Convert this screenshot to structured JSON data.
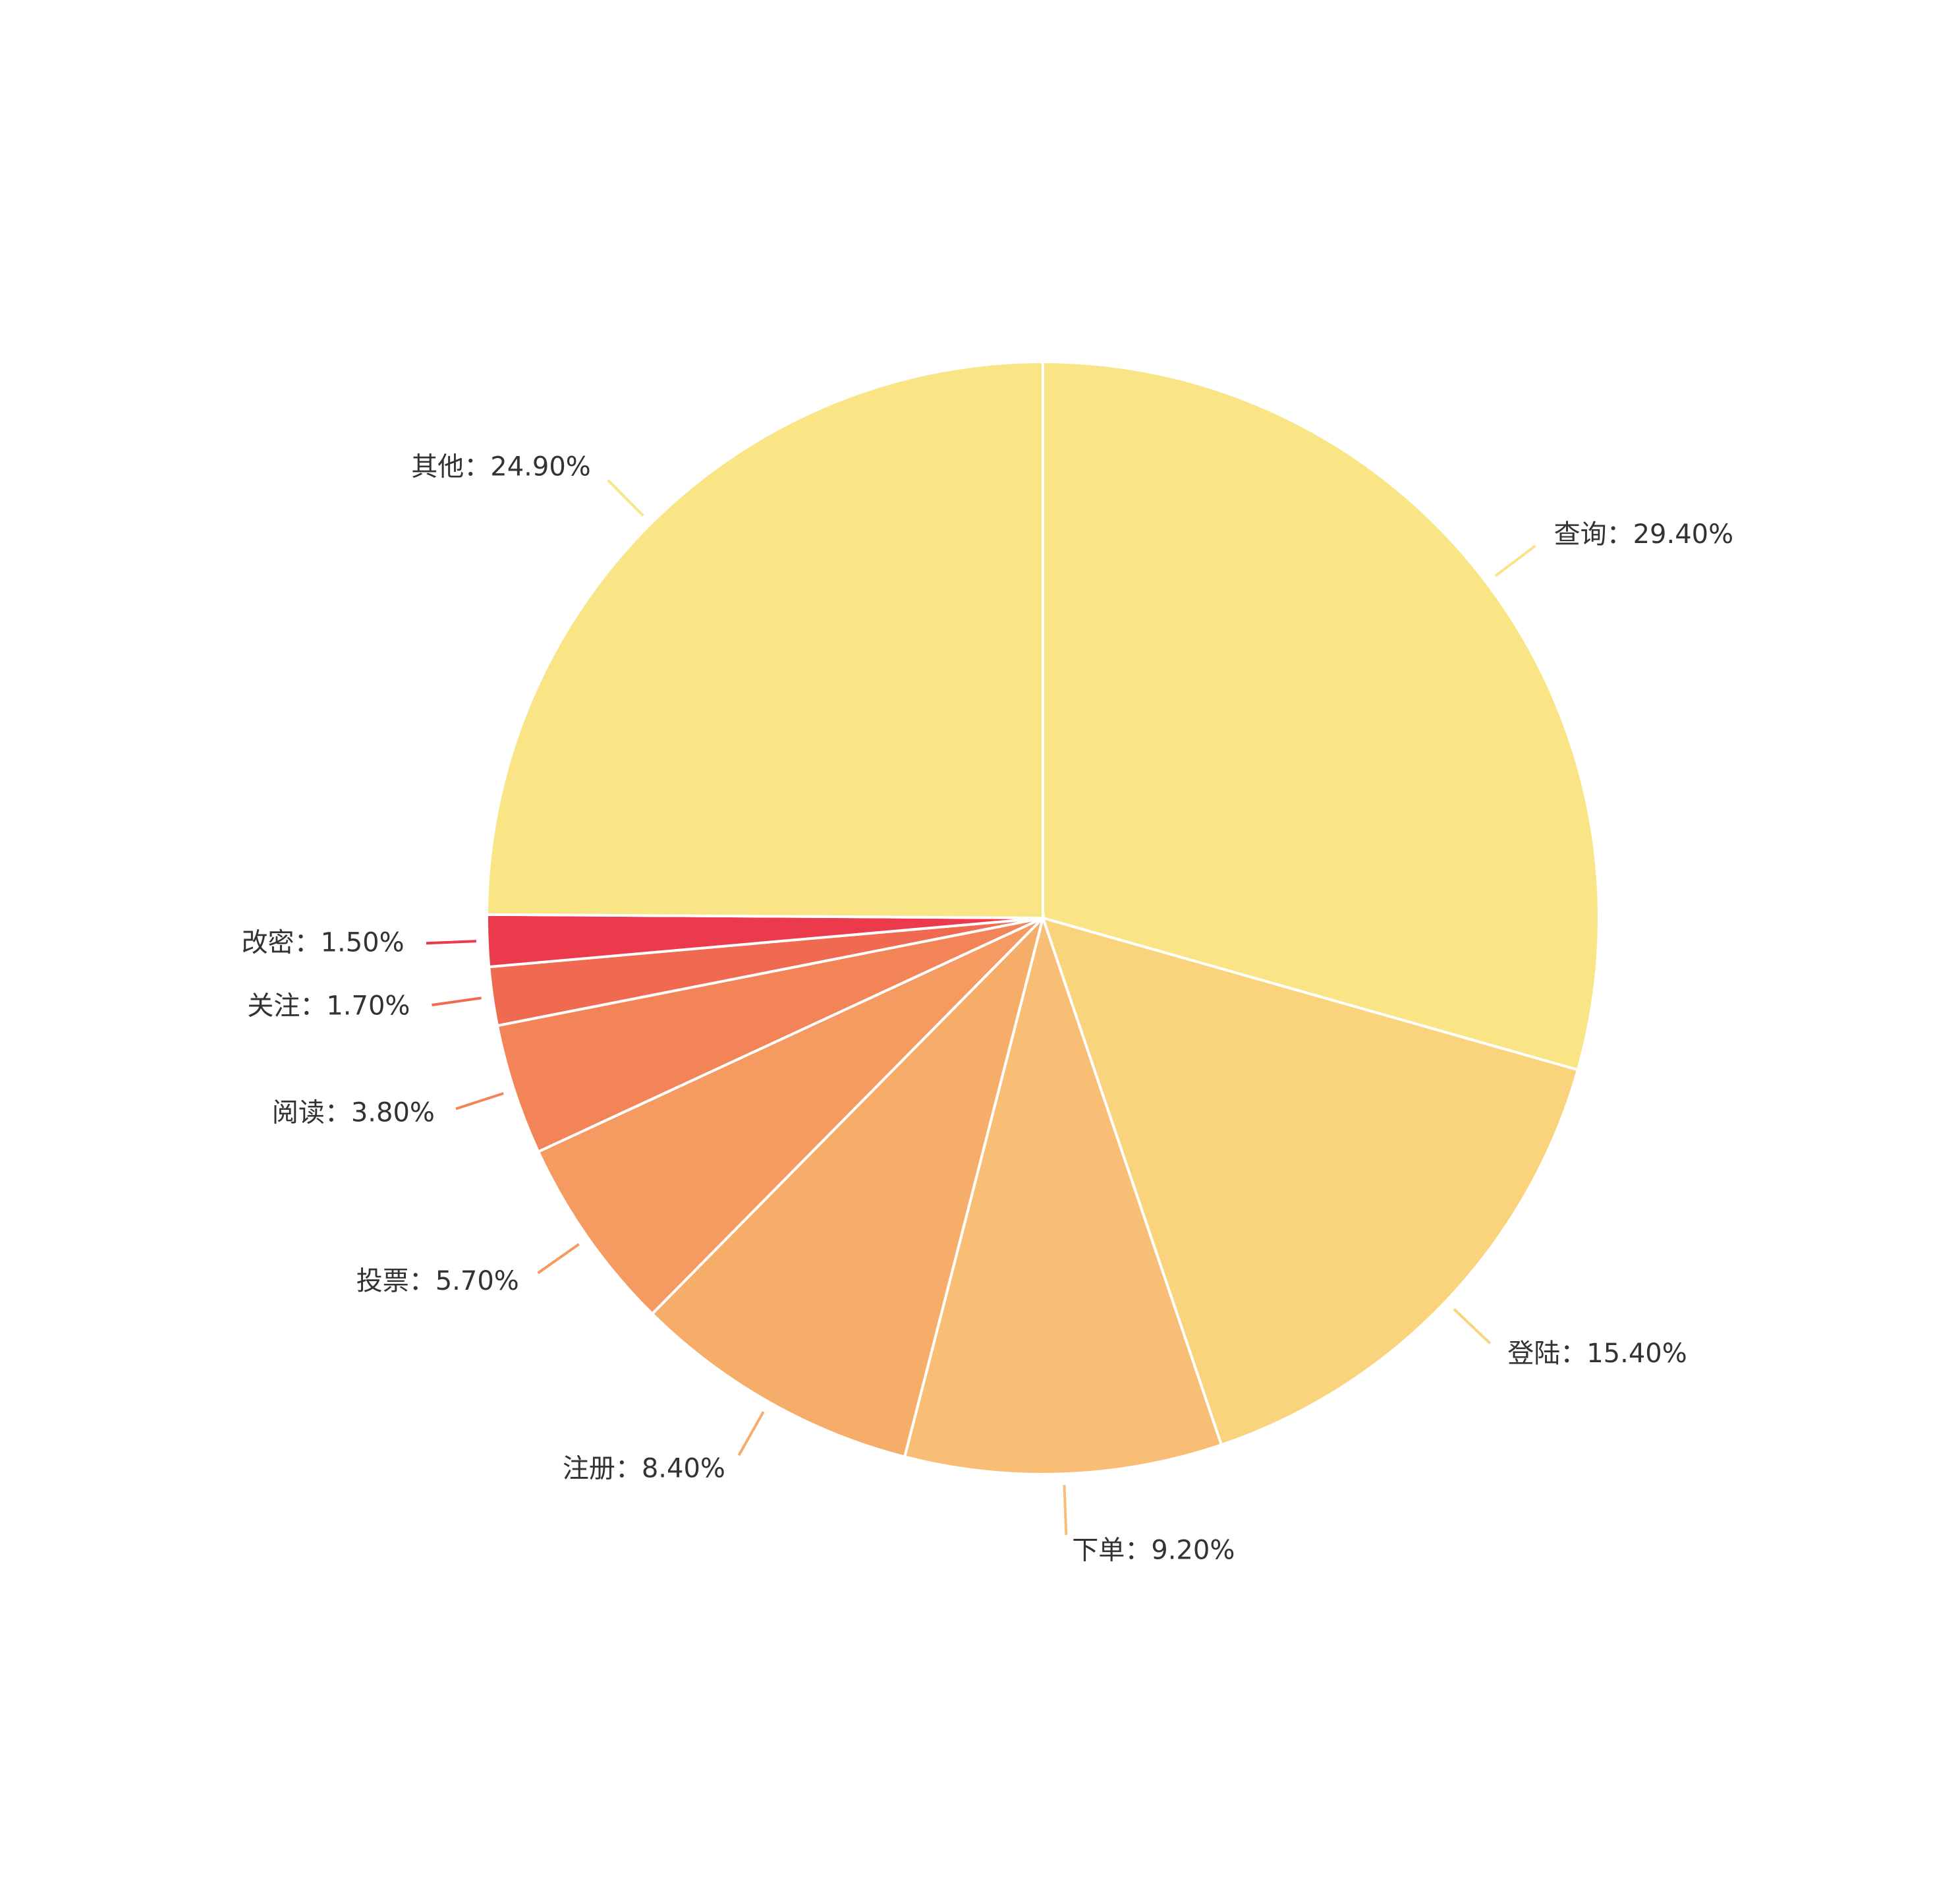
{
  "chart_data": {
    "type": "pie",
    "categories": [
      "查询",
      "登陆",
      "下单",
      "注册",
      "投票",
      "阅读",
      "关注",
      "改密",
      "其他"
    ],
    "values": [
      29.4,
      15.4,
      9.2,
      8.4,
      5.7,
      3.8,
      1.7,
      1.5,
      24.9
    ],
    "value_labels": [
      "29.40%",
      "15.40%",
      "9.20%",
      "8.40%",
      "5.70%",
      "3.80%",
      "1.70%",
      "1.50%",
      "24.90%"
    ],
    "label_separator": "：",
    "colors": [
      "#f9e585",
      "#f9d47c",
      "#f9be76",
      "#f7ad6a",
      "#f59a61",
      "#f38458",
      "#ef6a50",
      "#ea3a4b",
      "#f9e585"
    ]
  }
}
